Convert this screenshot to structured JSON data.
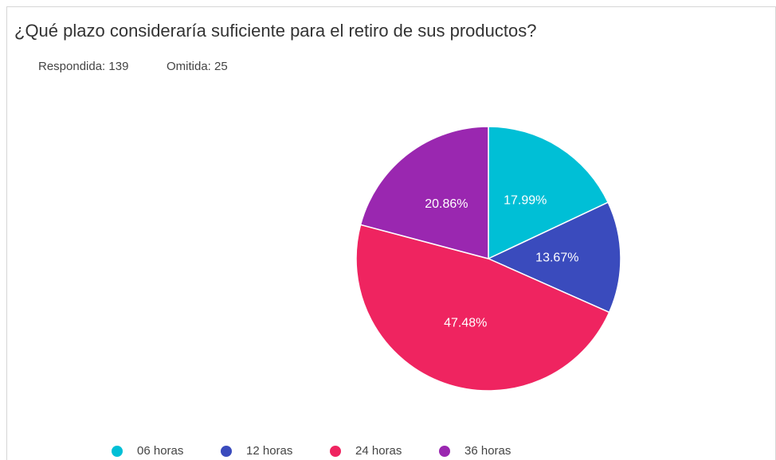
{
  "chart_data": {
    "type": "pie",
    "title": "¿Qué plazo consideraría suficiente para el retiro de sus productos?",
    "answered": "Respondida: 139",
    "skipped": "Omitida: 25",
    "categories": [
      "06 horas",
      "12 horas",
      "24 horas",
      "36 horas"
    ],
    "values": [
      17.99,
      13.67,
      47.48,
      20.86
    ],
    "value_labels": [
      "17.99%",
      "13.67%",
      "47.48%",
      "20.86%"
    ],
    "colors": [
      "#00bfd6",
      "#3a4bbd",
      "#ef2460",
      "#9a27b0"
    ],
    "legend": "bottom"
  }
}
